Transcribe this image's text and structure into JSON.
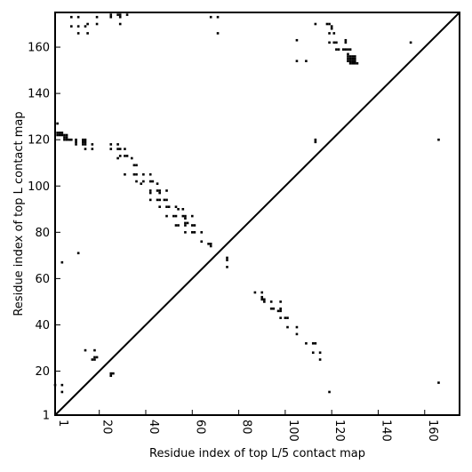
{
  "chart_data": {
    "type": "scatter",
    "title": "",
    "xlabel": "Residue index of top L/5 contact map",
    "ylabel": "Residue index of top L contact map",
    "xlim": [
      1,
      175
    ],
    "ylim": [
      1,
      175
    ],
    "xticks": [
      1,
      20,
      40,
      60,
      80,
      100,
      120,
      140,
      160
    ],
    "yticks": [
      1,
      20,
      40,
      60,
      80,
      100,
      120,
      140,
      160
    ],
    "grid": false,
    "diagonal": true,
    "marker_color": "#000000",
    "series": [
      {
        "values": [
          [
            2,
            123
          ],
          [
            3,
            123
          ],
          [
            4,
            123
          ],
          [
            2,
            122
          ],
          [
            3,
            122
          ],
          [
            4,
            122
          ],
          [
            5,
            122
          ],
          [
            5,
            121
          ],
          [
            5,
            120
          ],
          [
            6,
            120
          ],
          [
            7,
            120
          ],
          [
            8,
            120
          ],
          [
            6,
            121
          ],
          [
            6,
            122
          ],
          [
            2,
            127
          ],
          [
            10,
            120
          ],
          [
            10,
            119
          ],
          [
            10,
            118
          ],
          [
            13,
            120
          ],
          [
            14,
            120
          ],
          [
            13,
            119
          ],
          [
            14,
            119
          ],
          [
            13,
            118
          ],
          [
            14,
            118
          ],
          [
            14,
            116
          ],
          [
            17,
            118
          ],
          [
            17,
            116
          ],
          [
            8,
            173
          ],
          [
            11,
            173
          ],
          [
            8,
            169
          ],
          [
            11,
            169
          ],
          [
            11,
            166
          ],
          [
            14,
            169
          ],
          [
            15,
            170
          ],
          [
            15,
            166
          ],
          [
            19,
            173
          ],
          [
            19,
            170
          ],
          [
            25,
            174
          ],
          [
            25,
            173
          ],
          [
            28,
            174
          ],
          [
            29,
            174
          ],
          [
            29,
            173
          ],
          [
            32,
            174
          ],
          [
            29,
            170
          ],
          [
            68,
            173
          ],
          [
            71,
            173
          ],
          [
            71,
            166
          ],
          [
            25,
            118
          ],
          [
            25,
            116
          ],
          [
            28,
            118
          ],
          [
            28,
            116
          ],
          [
            29,
            116
          ],
          [
            29,
            113
          ],
          [
            28,
            112
          ],
          [
            31,
            116
          ],
          [
            31,
            113
          ],
          [
            32,
            113
          ],
          [
            34,
            112
          ],
          [
            35,
            109
          ],
          [
            36,
            109
          ],
          [
            31,
            105
          ],
          [
            35,
            105
          ],
          [
            36,
            105
          ],
          [
            39,
            105
          ],
          [
            39,
            102
          ],
          [
            42,
            105
          ],
          [
            36,
            102
          ],
          [
            38,
            101
          ],
          [
            42,
            102
          ],
          [
            43,
            102
          ],
          [
            45,
            101
          ],
          [
            42,
            98
          ],
          [
            45,
            98
          ],
          [
            46,
            98
          ],
          [
            46,
            97
          ],
          [
            42,
            97
          ],
          [
            45,
            94
          ],
          [
            46,
            94
          ],
          [
            48,
            94
          ],
          [
            49,
            94
          ],
          [
            42,
            94
          ],
          [
            49,
            98
          ],
          [
            46,
            91
          ],
          [
            49,
            91
          ],
          [
            50,
            91
          ],
          [
            53,
            91
          ],
          [
            54,
            90
          ],
          [
            56,
            90
          ],
          [
            49,
            87
          ],
          [
            52,
            87
          ],
          [
            53,
            87
          ],
          [
            56,
            87
          ],
          [
            57,
            87
          ],
          [
            60,
            87
          ],
          [
            57,
            86
          ],
          [
            53,
            83
          ],
          [
            54,
            83
          ],
          [
            57,
            83
          ],
          [
            57,
            84
          ],
          [
            58,
            84
          ],
          [
            60,
            83
          ],
          [
            61,
            83
          ],
          [
            57,
            80
          ],
          [
            60,
            80
          ],
          [
            61,
            80
          ],
          [
            64,
            80
          ],
          [
            64,
            76
          ],
          [
            67,
            75
          ],
          [
            68,
            75
          ],
          [
            68,
            74
          ],
          [
            4,
            67
          ],
          [
            11,
            71
          ],
          [
            75,
            69
          ],
          [
            75,
            68
          ],
          [
            75,
            65
          ],
          [
            87,
            54
          ],
          [
            90,
            54
          ],
          [
            90,
            52
          ],
          [
            90,
            51
          ],
          [
            91,
            51
          ],
          [
            91,
            50
          ],
          [
            94,
            50
          ],
          [
            98,
            50
          ],
          [
            94,
            47
          ],
          [
            95,
            47
          ],
          [
            97,
            46
          ],
          [
            98,
            47
          ],
          [
            98,
            46
          ],
          [
            98,
            43
          ],
          [
            100,
            43
          ],
          [
            101,
            43
          ],
          [
            101,
            39
          ],
          [
            105,
            39
          ],
          [
            105,
            36
          ],
          [
            109,
            32
          ],
          [
            112,
            32
          ],
          [
            113,
            32
          ],
          [
            112,
            28
          ],
          [
            115,
            28
          ],
          [
            115,
            25
          ],
          [
            1,
            14
          ],
          [
            4,
            14
          ],
          [
            4,
            11
          ],
          [
            14,
            29
          ],
          [
            18,
            29
          ],
          [
            18,
            26
          ],
          [
            19,
            26
          ],
          [
            17,
            25
          ],
          [
            18,
            25
          ],
          [
            25,
            19
          ],
          [
            26,
            19
          ],
          [
            25,
            18
          ],
          [
            119,
            11
          ],
          [
            166,
            15
          ],
          [
            113,
            170
          ],
          [
            113,
            120
          ],
          [
            113,
            119
          ],
          [
            118,
            170
          ],
          [
            119,
            170
          ],
          [
            120,
            169
          ],
          [
            120,
            168
          ],
          [
            119,
            166
          ],
          [
            121,
            166
          ],
          [
            105,
            163
          ],
          [
            119,
            162
          ],
          [
            121,
            162
          ],
          [
            122,
            162
          ],
          [
            126,
            163
          ],
          [
            126,
            162
          ],
          [
            105,
            154
          ],
          [
            109,
            154
          ],
          [
            122,
            159
          ],
          [
            123,
            159
          ],
          [
            125,
            159
          ],
          [
            126,
            159
          ],
          [
            127,
            159
          ],
          [
            128,
            159
          ],
          [
            154,
            162
          ],
          [
            166,
            120
          ],
          [
            127,
            157
          ],
          [
            127,
            156
          ],
          [
            127,
            155
          ],
          [
            127,
            154
          ],
          [
            128,
            156
          ],
          [
            128,
            155
          ],
          [
            128,
            154
          ],
          [
            128,
            153
          ],
          [
            129,
            156
          ],
          [
            129,
            155
          ],
          [
            129,
            154
          ],
          [
            129,
            153
          ],
          [
            130,
            156
          ],
          [
            130,
            155
          ],
          [
            130,
            154
          ],
          [
            130,
            153
          ],
          [
            131,
            153
          ]
        ]
      }
    ]
  }
}
